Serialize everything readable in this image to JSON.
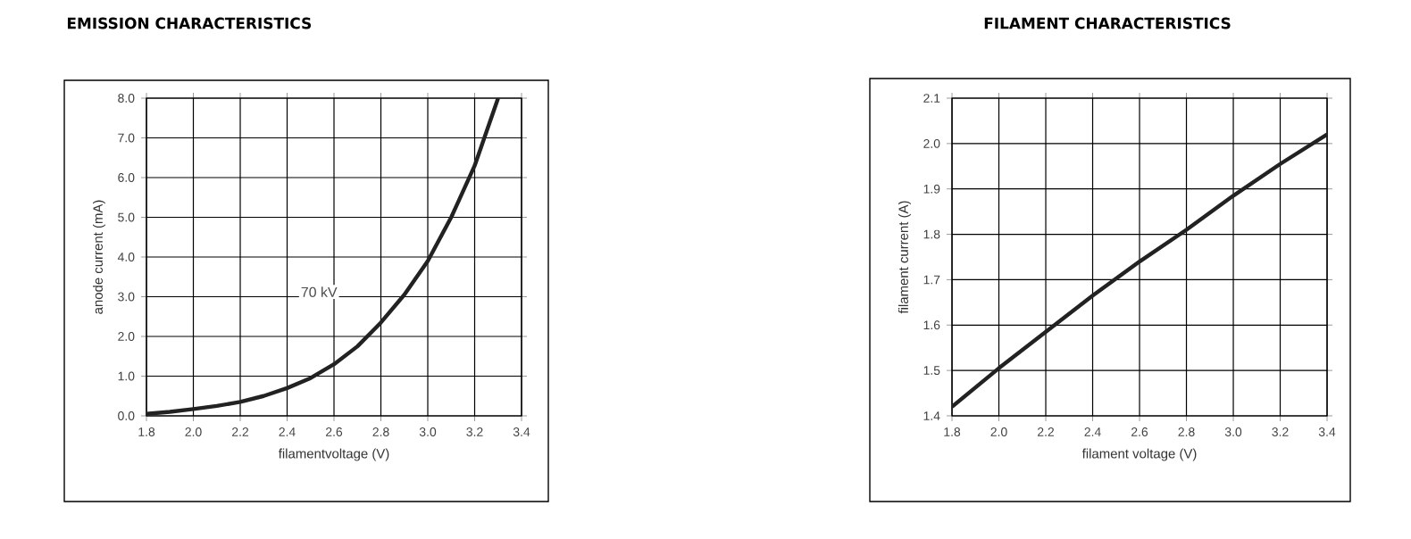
{
  "chart_data": [
    {
      "type": "line",
      "title": "EMISSION CHARACTERISTICS",
      "xlabel": "filamentvoltage (V)",
      "ylabel": "anode current (mA)",
      "annotations": [
        "70 kV"
      ],
      "x": [
        1.8,
        1.9,
        2.0,
        2.1,
        2.2,
        2.3,
        2.4,
        2.5,
        2.6,
        2.7,
        2.8,
        2.9,
        3.0,
        3.1,
        3.2,
        3.3
      ],
      "series": [
        {
          "color": "#222222",
          "values": [
            0.05,
            0.1,
            0.17,
            0.25,
            0.35,
            0.5,
            0.7,
            0.95,
            1.3,
            1.75,
            2.35,
            3.05,
            3.9,
            5.0,
            6.3,
            8.0
          ]
        }
      ],
      "xlim": [
        1.8,
        3.4
      ],
      "ylim": [
        0,
        8
      ],
      "xticks": [
        {
          "value": 1.8,
          "label": "1.8"
        },
        {
          "value": 2.0,
          "label": "2.0"
        },
        {
          "value": 2.2,
          "label": "2.2"
        },
        {
          "value": 2.4,
          "label": "2.4"
        },
        {
          "value": 2.6,
          "label": "2.6"
        },
        {
          "value": 2.8,
          "label": "2.8"
        },
        {
          "value": 3.0,
          "label": "3.0"
        },
        {
          "value": 3.2,
          "label": "3.2"
        },
        {
          "value": 3.4,
          "label": "3.4"
        }
      ],
      "yticks": [
        {
          "value": 0,
          "label": "0.0"
        },
        {
          "value": 1,
          "label": "1.0"
        },
        {
          "value": 2,
          "label": "2.0"
        },
        {
          "value": 3,
          "label": "3.0"
        },
        {
          "value": 4,
          "label": "4.0"
        },
        {
          "value": 5,
          "label": "5.0"
        },
        {
          "value": 6,
          "label": "6.0"
        },
        {
          "value": 7,
          "label": "7.0"
        },
        {
          "value": 8,
          "label": "8.0"
        }
      ],
      "grid": true,
      "marker": "none",
      "line_style": "solid"
    },
    {
      "type": "line",
      "title": "FILAMENT CHARACTERISTICS",
      "xlabel": "filament voltage (V)",
      "ylabel": "filament current (A)",
      "x": [
        1.8,
        2.0,
        2.2,
        2.4,
        2.6,
        2.8,
        3.0,
        3.2,
        3.4
      ],
      "series": [
        {
          "color": "#222222",
          "values": [
            1.42,
            1.505,
            1.585,
            1.665,
            1.74,
            1.81,
            1.885,
            1.955,
            2.02
          ]
        }
      ],
      "xlim": [
        1.8,
        3.4
      ],
      "ylim": [
        1.4,
        2.1
      ],
      "xticks": [
        {
          "value": 1.8,
          "label": "1.8"
        },
        {
          "value": 2.0,
          "label": "2.0"
        },
        {
          "value": 2.2,
          "label": "2.2"
        },
        {
          "value": 2.4,
          "label": "2.4"
        },
        {
          "value": 2.6,
          "label": "2.6"
        },
        {
          "value": 2.8,
          "label": "2.8"
        },
        {
          "value": 3.0,
          "label": "3.0"
        },
        {
          "value": 3.2,
          "label": "3.2"
        },
        {
          "value": 3.4,
          "label": "3.4"
        }
      ],
      "yticks": [
        {
          "value": 1.4,
          "label": "1.4"
        },
        {
          "value": 1.5,
          "label": "1.5"
        },
        {
          "value": 1.6,
          "label": "1.6"
        },
        {
          "value": 1.7,
          "label": "1.7"
        },
        {
          "value": 1.8,
          "label": "1.8"
        },
        {
          "value": 1.9,
          "label": "1.9"
        },
        {
          "value": 2.0,
          "label": "2.0"
        },
        {
          "value": 2.1,
          "label": "2.1"
        }
      ],
      "grid": true,
      "marker": "none",
      "line_style": "solid"
    }
  ]
}
